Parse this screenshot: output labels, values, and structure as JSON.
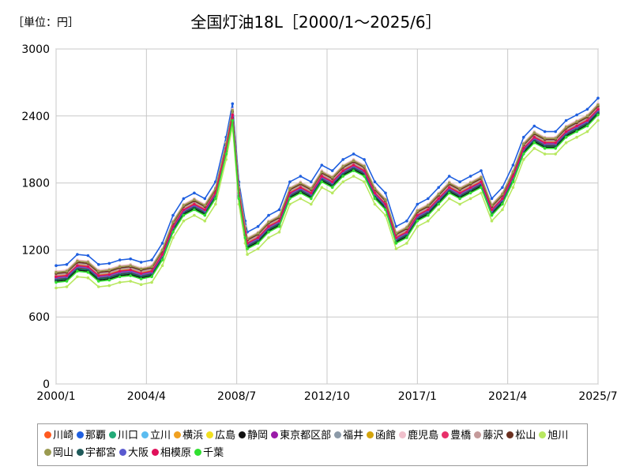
{
  "chart_data": {
    "type": "line",
    "unit_label": "［単位：円］",
    "title": "全国灯油18L［2000/1～2025/6］",
    "ylim": [
      0,
      3000
    ],
    "yticks": [
      0,
      600,
      1200,
      1800,
      2400,
      3000
    ],
    "xlim": [
      2000.0,
      2025.5
    ],
    "xticks": [
      {
        "label": "2000/1",
        "x": 2000.0
      },
      {
        "label": "2004/4",
        "x": 2004.25
      },
      {
        "label": "2008/7",
        "x": 2008.5
      },
      {
        "label": "2012/10",
        "x": 2012.75
      },
      {
        "label": "2017/1",
        "x": 2017.0
      },
      {
        "label": "2021/4",
        "x": 2021.25
      },
      {
        "label": "2025/7",
        "x": 2025.5
      }
    ],
    "grid": true,
    "legend_position": "bottom",
    "x": [
      2000.0,
      2000.5,
      2001.0,
      2001.5,
      2002.0,
      2002.5,
      2003.0,
      2003.5,
      2004.0,
      2004.5,
      2005.0,
      2005.5,
      2006.0,
      2006.5,
      2007.0,
      2007.5,
      2008.0,
      2008.3,
      2008.6,
      2008.9,
      2009.0,
      2009.5,
      2010.0,
      2010.5,
      2011.0,
      2011.5,
      2012.0,
      2012.5,
      2013.0,
      2013.5,
      2014.0,
      2014.5,
      2015.0,
      2015.5,
      2016.0,
      2016.5,
      2017.0,
      2017.5,
      2018.0,
      2018.5,
      2019.0,
      2019.5,
      2020.0,
      2020.5,
      2021.0,
      2021.5,
      2022.0,
      2022.5,
      2023.0,
      2023.5,
      2024.0,
      2024.5,
      2025.0,
      2025.5
    ],
    "series": [
      {
        "name": "川崎",
        "color": "#ff5a1f",
        "offset": 20
      },
      {
        "name": "那覇",
        "color": "#1f5fe0",
        "offset": 110
      },
      {
        "name": "川口",
        "color": "#22aa77",
        "offset": -20
      },
      {
        "name": "立川",
        "color": "#5bbcf0",
        "offset": 0
      },
      {
        "name": "横浜",
        "color": "#f0a020",
        "offset": 10
      },
      {
        "name": "広島",
        "color": "#f2e020",
        "offset": -10
      },
      {
        "name": "静岡",
        "color": "#111111",
        "offset": -30
      },
      {
        "name": "東京都区部",
        "color": "#9a1aa8",
        "offset": 5
      },
      {
        "name": "福井",
        "color": "#8c9aa8",
        "offset": 30
      },
      {
        "name": "函館",
        "color": "#d4a40c",
        "offset": 15
      },
      {
        "name": "鹿児島",
        "color": "#f0c0cc",
        "offset": 60
      },
      {
        "name": "豊橋",
        "color": "#e8306a",
        "offset": -5
      },
      {
        "name": "藤沢",
        "color": "#c49a9a",
        "offset": 25
      },
      {
        "name": "松山",
        "color": "#6a3020",
        "offset": 40
      },
      {
        "name": "旭川",
        "color": "#b8e860",
        "offset": -90
      },
      {
        "name": "岡山",
        "color": "#9a9a50",
        "offset": 50
      },
      {
        "name": "宇都宮",
        "color": "#1f5a5a",
        "offset": -15
      },
      {
        "name": "大阪",
        "color": "#5a5ad0",
        "offset": 0
      },
      {
        "name": "相模原",
        "color": "#e0105a",
        "offset": 10
      },
      {
        "name": "千葉",
        "color": "#30e030",
        "offset": -40
      }
    ],
    "base_values": [
      950,
      960,
      1050,
      1040,
      960,
      970,
      1000,
      1010,
      980,
      1000,
      1150,
      1400,
      1550,
      1600,
      1550,
      1700,
      2100,
      2400,
      1700,
      1350,
      1250,
      1300,
      1400,
      1450,
      1700,
      1750,
      1700,
      1850,
      1800,
      1900,
      1950,
      1900,
      1700,
      1600,
      1300,
      1350,
      1500,
      1550,
      1650,
      1750,
      1700,
      1750,
      1800,
      1550,
      1650,
      1850,
      2100,
      2200,
      2150,
      2150,
      2250,
      2300,
      2350,
      2450
    ]
  }
}
